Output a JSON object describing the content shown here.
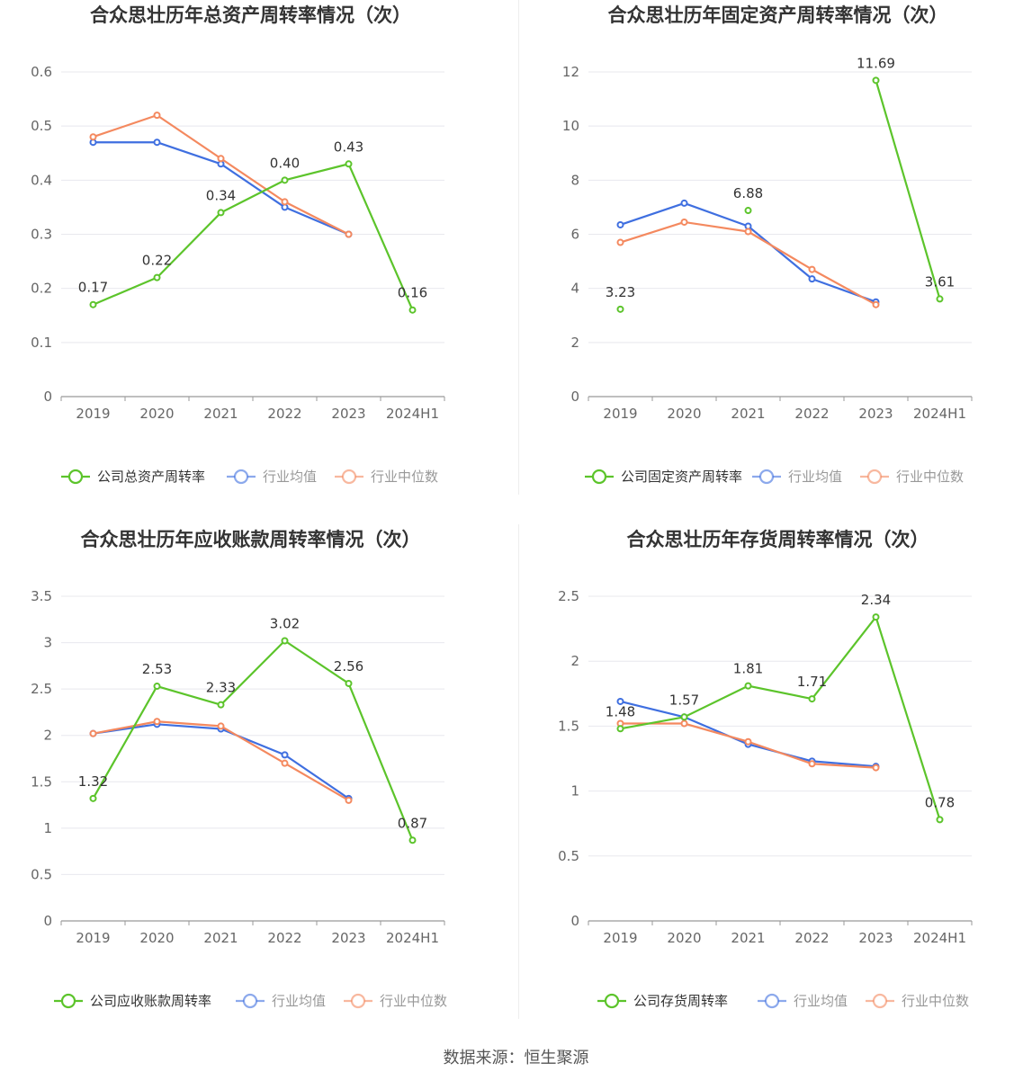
{
  "footer": "数据来源：恒生聚源",
  "colors": {
    "company": "#5cc42b",
    "avg": "#3f6fe0",
    "median": "#f4895f",
    "grid": "#e8e8ee",
    "axis": "#999999"
  },
  "legend_common": {
    "avg": "行业均值",
    "median": "行业中位数"
  },
  "chart_data": [
    {
      "type": "line",
      "title": "合众思壮历年总资产周转率情况（次）",
      "categories": [
        "2019",
        "2020",
        "2021",
        "2022",
        "2023",
        "2024H1"
      ],
      "ylim": [
        0,
        0.6
      ],
      "yticks": [
        0,
        0.1,
        0.2,
        0.3,
        0.4,
        0.5,
        0.6
      ],
      "ytick_labels": [
        "0",
        "0.1",
        "0.2",
        "0.3",
        "0.4",
        "0.5",
        "0.6"
      ],
      "legend": "bottom",
      "series": [
        {
          "name": "公司总资产周转率",
          "key": "company",
          "values": [
            0.17,
            0.22,
            0.34,
            0.4,
            0.43,
            0.16
          ],
          "labels": [
            "0.17",
            "0.22",
            "0.34",
            "0.40",
            "0.43",
            "0.16"
          ]
        },
        {
          "name": "行业均值",
          "key": "avg",
          "values": [
            0.47,
            0.47,
            0.43,
            0.35,
            0.3,
            null
          ]
        },
        {
          "name": "行业中位数",
          "key": "median",
          "values": [
            0.48,
            0.52,
            0.44,
            0.36,
            0.3,
            null
          ]
        }
      ]
    },
    {
      "type": "line",
      "title": "合众思壮历年固定资产周转率情况（次）",
      "categories": [
        "2019",
        "2020",
        "2021",
        "2022",
        "2023",
        "2024H1"
      ],
      "ylim": [
        0,
        12
      ],
      "yticks": [
        0,
        2,
        4,
        6,
        8,
        10,
        12
      ],
      "ytick_labels": [
        "0",
        "2",
        "4",
        "6",
        "8",
        "10",
        "12"
      ],
      "legend": "bottom",
      "series": [
        {
          "name": "公司固定资产周转率",
          "key": "company",
          "values": [
            3.23,
            null,
            6.88,
            null,
            11.69,
            3.61
          ],
          "labels": [
            "3.23",
            null,
            "6.88",
            null,
            "11.69",
            "3.61"
          ]
        },
        {
          "name": "行业均值",
          "key": "avg",
          "values": [
            6.35,
            7.15,
            6.3,
            4.35,
            3.5,
            null
          ]
        },
        {
          "name": "行业中位数",
          "key": "median",
          "values": [
            5.7,
            6.45,
            6.1,
            4.7,
            3.4,
            null
          ]
        }
      ]
    },
    {
      "type": "line",
      "title": "合众思壮历年应收账款周转率情况（次）",
      "categories": [
        "2019",
        "2020",
        "2021",
        "2022",
        "2023",
        "2024H1"
      ],
      "ylim": [
        0,
        3.5
      ],
      "yticks": [
        0,
        0.5,
        1,
        1.5,
        2,
        2.5,
        3,
        3.5
      ],
      "ytick_labels": [
        "0",
        "0.5",
        "1",
        "1.5",
        "2",
        "2.5",
        "3",
        "3.5"
      ],
      "legend": "bottom",
      "series": [
        {
          "name": "公司应收账款周转率",
          "key": "company",
          "values": [
            1.32,
            2.53,
            2.33,
            3.02,
            2.56,
            0.87
          ],
          "labels": [
            "1.32",
            "2.53",
            "2.33",
            "3.02",
            "2.56",
            "0.87"
          ]
        },
        {
          "name": "行业均值",
          "key": "avg",
          "values": [
            2.02,
            2.12,
            2.07,
            1.79,
            1.32,
            null
          ]
        },
        {
          "name": "行业中位数",
          "key": "median",
          "values": [
            2.02,
            2.15,
            2.1,
            1.7,
            1.3,
            null
          ]
        }
      ]
    },
    {
      "type": "line",
      "title": "合众思壮历年存货周转率情况（次）",
      "categories": [
        "2019",
        "2020",
        "2021",
        "2022",
        "2023",
        "2024H1"
      ],
      "ylim": [
        0,
        2.5
      ],
      "yticks": [
        0,
        0.5,
        1,
        1.5,
        2,
        2.5
      ],
      "ytick_labels": [
        "0",
        "0.5",
        "1",
        "1.5",
        "2",
        "2.5"
      ],
      "legend": "bottom",
      "series": [
        {
          "name": "公司存货周转率",
          "key": "company",
          "values": [
            1.48,
            1.57,
            1.81,
            1.71,
            2.34,
            0.78
          ],
          "labels": [
            "1.48",
            "1.57",
            "1.81",
            "1.71",
            "2.34",
            "0.78"
          ]
        },
        {
          "name": "行业均值",
          "key": "avg",
          "values": [
            1.69,
            1.57,
            1.36,
            1.23,
            1.19,
            null
          ]
        },
        {
          "name": "行业中位数",
          "key": "median",
          "values": [
            1.52,
            1.52,
            1.38,
            1.21,
            1.18,
            null
          ]
        }
      ]
    }
  ]
}
